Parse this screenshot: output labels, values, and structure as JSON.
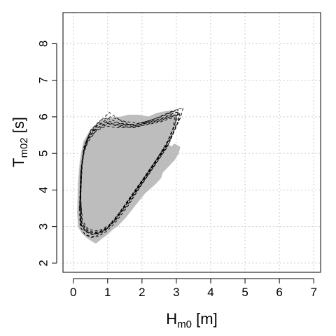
{
  "chart_data": {
    "type": "line",
    "title": "",
    "xlabel": {
      "main": "H",
      "sub": "m0",
      "suffix": " [m]"
    },
    "ylabel": {
      "main": "T",
      "sub": "m02",
      "suffix": " [s]"
    },
    "xlim": [
      -0.3,
      7.2
    ],
    "ylim": [
      1.75,
      8.85
    ],
    "x_ticks": [
      0,
      1,
      2,
      3,
      4,
      5,
      6,
      7
    ],
    "y_ticks": [
      2,
      3,
      4,
      5,
      6,
      7,
      8
    ],
    "grid": true,
    "colors": {
      "band": "#bdbdbd",
      "lines": "#000000",
      "grid": "#cccccc"
    },
    "envelope_band": {
      "x": [
        0.18,
        0.2,
        0.25,
        0.35,
        0.55,
        0.75,
        0.95,
        1.15,
        1.4,
        1.6,
        1.9,
        2.2,
        2.45,
        2.7,
        2.85,
        2.95,
        2.92,
        2.8,
        2.6,
        2.45,
        2.2,
        1.95,
        1.7,
        1.5,
        1.3,
        1.1,
        0.95,
        0.8,
        0.65,
        0.45,
        0.3,
        0.2,
        0.18,
        0.17,
        0.18,
        0.25,
        0.4,
        0.55,
        0.7,
        0.9,
        1.2,
        1.5,
        1.8,
        2.1,
        2.4,
        2.6,
        2.75,
        2.85,
        2.95,
        3.05,
        3.0,
        2.9,
        2.75,
        2.55,
        2.5,
        2.35,
        2.05,
        1.75,
        1.5,
        1.25,
        1.0,
        0.8,
        0.65,
        0.55,
        0.45,
        0.35,
        0.25,
        0.2
      ],
      "y": [
        3.6,
        4.2,
        4.8,
        5.3,
        5.62,
        5.8,
        5.9,
        5.92,
        5.95,
        6.0,
        6.0,
        5.95,
        6.05,
        6.1,
        6.12,
        6.0,
        5.85,
        5.5,
        5.2,
        4.95,
        4.5,
        4.05,
        3.65,
        3.35,
        3.15,
        2.95,
        2.82,
        2.72,
        2.6,
        2.72,
        2.85,
        3.0,
        3.25,
        3.4,
        3.55,
        3.9,
        4.9,
        5.35,
        5.55,
        5.65,
        5.72,
        5.6,
        5.55,
        5.6,
        5.55,
        5.4,
        5.2,
        5.1,
        5.2,
        5.15,
        5.0,
        4.85,
        4.7,
        4.5,
        4.35,
        4.2,
        3.95,
        3.6,
        3.3,
        3.05,
        2.9,
        2.82,
        2.78,
        2.8,
        2.85,
        2.95,
        3.1,
        3.35
      ]
    },
    "series": [
      {
        "x": [
          0.2,
          0.23,
          0.3,
          0.45,
          0.7,
          1.0,
          1.4,
          1.8,
          2.2,
          2.6,
          2.85,
          3.0,
          2.95,
          2.7,
          2.35,
          1.95,
          1.55,
          1.2,
          0.95,
          0.75,
          0.55,
          0.35,
          0.22,
          0.2
        ],
        "y": [
          3.7,
          4.6,
          5.1,
          5.45,
          5.7,
          5.82,
          5.78,
          5.8,
          5.86,
          5.95,
          6.05,
          6.05,
          5.75,
          5.2,
          4.7,
          4.15,
          3.6,
          3.15,
          2.92,
          2.82,
          2.78,
          2.86,
          3.05,
          3.7
        ]
      },
      {
        "x": [
          0.22,
          0.25,
          0.35,
          0.5,
          0.75,
          1.05,
          1.45,
          1.85,
          2.25,
          2.65,
          2.9,
          3.1,
          3.05,
          2.8,
          2.45,
          2.05,
          1.6,
          1.25,
          1.0,
          0.78,
          0.58,
          0.38,
          0.25,
          0.22
        ],
        "y": [
          3.8,
          4.75,
          5.25,
          5.6,
          5.85,
          6.12,
          5.85,
          5.75,
          5.9,
          6.05,
          6.15,
          6.1,
          5.85,
          5.3,
          4.85,
          4.3,
          3.7,
          3.25,
          2.98,
          2.86,
          2.82,
          2.9,
          3.1,
          3.8
        ]
      },
      {
        "x": [
          0.18,
          0.21,
          0.28,
          0.42,
          0.65,
          0.95,
          1.3,
          1.7,
          2.1,
          2.5,
          2.8,
          2.95,
          2.9,
          2.65,
          2.3,
          1.9,
          1.5,
          1.15,
          0.92,
          0.7,
          0.52,
          0.33,
          0.2,
          0.18
        ],
        "y": [
          3.5,
          4.4,
          4.95,
          5.3,
          5.6,
          5.75,
          5.7,
          5.72,
          5.78,
          5.85,
          5.95,
          5.98,
          5.65,
          5.1,
          4.6,
          4.05,
          3.55,
          3.1,
          2.88,
          2.76,
          2.72,
          2.8,
          3.0,
          3.5
        ]
      },
      {
        "x": [
          0.2,
          0.24,
          0.32,
          0.48,
          0.72,
          1.02,
          1.38,
          1.75,
          2.15,
          2.55,
          2.82,
          3.05,
          3.0,
          2.75,
          2.4,
          2.0,
          1.58,
          1.22,
          0.97,
          0.76,
          0.56,
          0.36,
          0.23,
          0.2
        ],
        "y": [
          3.65,
          4.55,
          5.15,
          5.5,
          5.78,
          5.95,
          5.82,
          5.78,
          5.88,
          6.0,
          6.1,
          6.2,
          5.9,
          5.35,
          4.8,
          4.25,
          3.65,
          3.2,
          2.95,
          2.84,
          2.8,
          2.88,
          3.08,
          3.65
        ]
      },
      {
        "x": [
          0.19,
          0.22,
          0.29,
          0.43,
          0.66,
          0.98,
          1.35,
          1.78,
          2.18,
          2.58,
          2.87,
          3.15,
          3.1,
          2.85,
          2.5,
          2.1,
          1.65,
          1.28,
          1.02,
          0.8,
          0.6,
          0.4,
          0.24,
          0.19
        ],
        "y": [
          3.55,
          4.5,
          5.05,
          5.4,
          5.68,
          5.85,
          5.76,
          5.74,
          5.84,
          5.92,
          6.02,
          6.1,
          5.95,
          5.45,
          4.95,
          4.4,
          3.8,
          3.3,
          3.0,
          2.88,
          2.84,
          2.92,
          3.12,
          3.55
        ]
      },
      {
        "x": [
          0.21,
          0.26,
          0.36,
          0.52,
          0.78,
          1.08,
          1.48,
          1.9,
          2.3,
          2.7,
          2.95,
          3.2,
          3.12,
          2.88,
          2.55,
          2.15,
          1.7,
          1.32,
          1.05,
          0.82,
          0.62,
          0.42,
          0.27,
          0.21
        ],
        "y": [
          3.75,
          4.7,
          5.3,
          5.65,
          5.9,
          6.0,
          5.88,
          5.82,
          5.92,
          6.08,
          6.18,
          6.25,
          5.98,
          5.5,
          5.0,
          4.45,
          3.85,
          3.35,
          3.05,
          2.92,
          2.88,
          2.95,
          3.15,
          3.75
        ]
      },
      {
        "x": [
          0.2,
          0.23,
          0.31,
          0.46,
          0.69,
          1.0,
          1.42,
          1.82,
          2.22,
          2.62,
          2.88,
          3.08,
          3.02,
          2.78,
          2.42,
          2.02,
          1.6,
          1.24,
          0.98,
          0.77,
          0.57,
          0.37,
          0.23,
          0.2
        ],
        "y": [
          3.68,
          4.62,
          5.18,
          5.52,
          5.76,
          5.88,
          5.8,
          5.76,
          5.86,
          5.98,
          6.08,
          6.14,
          5.8,
          5.25,
          4.75,
          4.2,
          3.62,
          3.18,
          2.94,
          2.83,
          2.79,
          2.87,
          3.06,
          3.68
        ]
      },
      {
        "x": [
          0.19,
          0.22,
          0.3,
          0.44,
          0.68,
          0.99,
          1.36,
          1.76,
          2.16,
          2.56,
          2.84,
          3.0,
          2.96,
          2.72,
          2.36,
          1.96,
          1.56,
          1.2,
          0.95,
          0.74,
          0.54,
          0.34,
          0.21,
          0.19
        ],
        "y": [
          3.58,
          4.48,
          5.02,
          5.38,
          5.64,
          5.8,
          5.74,
          5.7,
          5.8,
          5.9,
          6.0,
          6.02,
          5.7,
          5.15,
          4.65,
          4.1,
          3.52,
          3.08,
          2.86,
          2.74,
          2.7,
          2.78,
          2.98,
          3.58
        ]
      }
    ]
  }
}
